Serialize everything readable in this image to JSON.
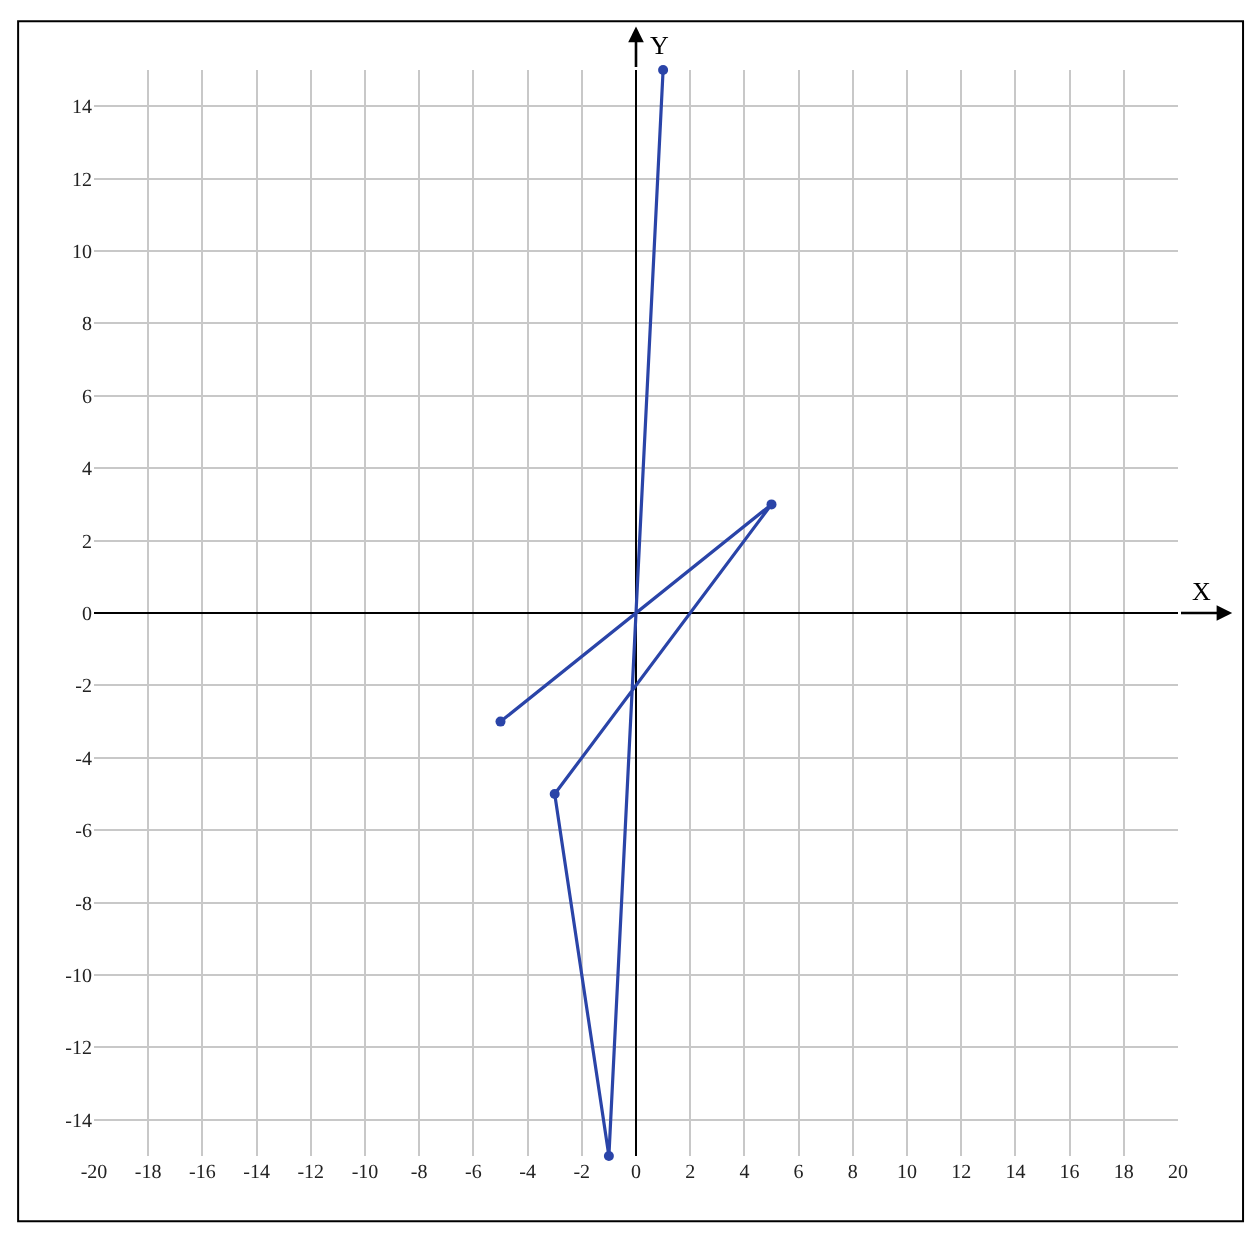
{
  "chart_data": {
    "type": "line",
    "xlabel": "X",
    "ylabel": "Y",
    "x": [
      -5,
      5,
      -3,
      -1,
      1
    ],
    "series": [
      {
        "color": "#2a44a8",
        "values": [
          -3,
          3,
          -5,
          -15,
          15
        ]
      }
    ],
    "xlim": [
      -20,
      20
    ],
    "ylim": [
      -15,
      15
    ],
    "xticks": [
      -20,
      -18,
      -16,
      -14,
      -12,
      -10,
      -8,
      -6,
      -4,
      -2,
      0,
      2,
      4,
      6,
      8,
      10,
      12,
      14,
      16,
      18,
      20
    ],
    "yticks": [
      -14,
      -12,
      -10,
      -8,
      -6,
      -4,
      -2,
      0,
      2,
      4,
      6,
      8,
      10,
      12,
      14
    ],
    "grid": true,
    "marker": "circle",
    "line_style": "solid"
  }
}
